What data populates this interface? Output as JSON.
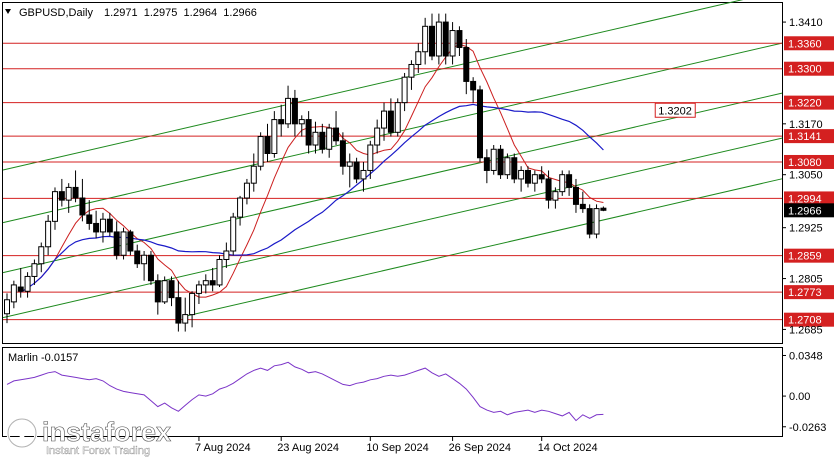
{
  "header": {
    "symbol_tf": "GBPUSD,Daily",
    "ohlc": "1.2971  1.2975  1.2964  1.2966"
  },
  "chart_data": {
    "type": "candlestick",
    "symbol": "GBPUSD",
    "timeframe": "Daily",
    "ylim": [
      1.2653,
      1.3455
    ],
    "y_ticks": [
      "1.3410",
      "1.3170",
      "1.3050",
      "1.2925",
      "1.2805",
      "1.2685"
    ],
    "x_labels": [
      "7 Aug 2024",
      "23 Aug 2024",
      "10 Sep 2024",
      "26 Sep 2024",
      "14 Oct 2024"
    ],
    "x_label_days": [
      28,
      40,
      53,
      65,
      78
    ],
    "level_lines": [
      {
        "label": "1.3360",
        "value": 1.336
      },
      {
        "label": "1.3300",
        "value": 1.33
      },
      {
        "label": "1.3220",
        "value": 1.322
      },
      {
        "label": "1.3141",
        "value": 1.3141
      },
      {
        "label": "1.3080",
        "value": 1.308
      },
      {
        "label": "1.2994",
        "value": 1.2994
      },
      {
        "label": "1.2859",
        "value": 1.2859
      },
      {
        "label": "1.2773",
        "value": 1.2773
      },
      {
        "label": "1.2708",
        "value": 1.2708
      }
    ],
    "current_price": {
      "label": "1.2966",
      "value": 1.2966
    },
    "callout": {
      "label": "1.3202",
      "value": 1.3202,
      "day": 88
    },
    "candles_ohlc": [
      [
        1.2722,
        1.277,
        1.27,
        1.2755
      ],
      [
        1.275,
        1.28,
        1.2735,
        1.279
      ],
      [
        1.2785,
        1.283,
        1.276,
        1.2775
      ],
      [
        1.2775,
        1.282,
        1.276,
        1.281
      ],
      [
        1.281,
        1.285,
        1.279,
        1.284
      ],
      [
        1.284,
        1.289,
        1.282,
        1.288
      ],
      [
        1.288,
        1.2955,
        1.286,
        1.294
      ],
      [
        1.294,
        1.302,
        1.292,
        1.301
      ],
      [
        1.301,
        1.304,
        1.2975,
        1.299
      ],
      [
        1.299,
        1.303,
        1.296,
        1.302
      ],
      [
        1.302,
        1.306,
        1.2985,
        1.2995
      ],
      [
        1.2995,
        1.304,
        1.294,
        1.2955
      ],
      [
        1.2955,
        1.299,
        1.292,
        1.2935
      ],
      [
        1.2935,
        1.2965,
        1.29,
        1.2915
      ],
      [
        1.2915,
        1.296,
        1.289,
        1.2945
      ],
      [
        1.2945,
        1.296,
        1.2905,
        1.2915
      ],
      [
        1.2915,
        1.294,
        1.285,
        1.286
      ],
      [
        1.286,
        1.2925,
        1.285,
        1.2915
      ],
      [
        1.2915,
        1.292,
        1.286,
        1.287
      ],
      [
        1.287,
        1.2885,
        1.283,
        1.284
      ],
      [
        1.284,
        1.287,
        1.28,
        1.286
      ],
      [
        1.286,
        1.287,
        1.279,
        1.28
      ],
      [
        1.28,
        1.2815,
        1.272,
        1.275
      ],
      [
        1.275,
        1.281,
        1.2745,
        1.28
      ],
      [
        1.28,
        1.281,
        1.274,
        1.276
      ],
      [
        1.276,
        1.28,
        1.268,
        1.27
      ],
      [
        1.27,
        1.276,
        1.268,
        1.272
      ],
      [
        1.272,
        1.2775,
        1.269,
        1.277
      ],
      [
        1.277,
        1.28,
        1.2745,
        1.279
      ],
      [
        1.279,
        1.2815,
        1.277,
        1.28
      ],
      [
        1.28,
        1.283,
        1.2775,
        1.279
      ],
      [
        1.279,
        1.286,
        1.2785,
        1.285
      ],
      [
        1.285,
        1.289,
        1.283,
        1.287
      ],
      [
        1.287,
        1.296,
        1.286,
        1.295
      ],
      [
        1.295,
        1.3,
        1.293,
        1.2995
      ],
      [
        1.2995,
        1.304,
        1.298,
        1.303
      ],
      [
        1.303,
        1.31,
        1.301,
        1.307
      ],
      [
        1.307,
        1.315,
        1.306,
        1.314
      ],
      [
        1.314,
        1.317,
        1.308,
        1.31
      ],
      [
        1.31,
        1.32,
        1.309,
        1.318
      ],
      [
        1.318,
        1.3215,
        1.314,
        1.317
      ],
      [
        1.317,
        1.326,
        1.316,
        1.323
      ],
      [
        1.323,
        1.325,
        1.314,
        1.317
      ],
      [
        1.317,
        1.319,
        1.314,
        1.318
      ],
      [
        1.318,
        1.32,
        1.31,
        1.312
      ],
      [
        1.312,
        1.3175,
        1.31,
        1.315
      ],
      [
        1.315,
        1.317,
        1.31,
        1.311
      ],
      [
        1.311,
        1.317,
        1.309,
        1.316
      ],
      [
        1.316,
        1.32,
        1.312,
        1.313
      ],
      [
        1.313,
        1.315,
        1.305,
        1.307
      ],
      [
        1.307,
        1.31,
        1.302,
        1.308
      ],
      [
        1.308,
        1.309,
        1.303,
        1.304
      ],
      [
        1.304,
        1.308,
        1.301,
        1.306
      ],
      [
        1.306,
        1.313,
        1.304,
        1.312
      ],
      [
        1.312,
        1.318,
        1.31,
        1.316
      ],
      [
        1.316,
        1.322,
        1.313,
        1.32
      ],
      [
        1.32,
        1.323,
        1.314,
        1.315
      ],
      [
        1.315,
        1.323,
        1.314,
        1.322
      ],
      [
        1.322,
        1.329,
        1.32,
        1.328
      ],
      [
        1.328,
        1.332,
        1.325,
        1.331
      ],
      [
        1.331,
        1.336,
        1.329,
        1.334
      ],
      [
        1.334,
        1.342,
        1.331,
        1.34
      ],
      [
        1.34,
        1.343,
        1.332,
        1.333
      ],
      [
        1.333,
        1.343,
        1.331,
        1.341
      ],
      [
        1.341,
        1.343,
        1.331,
        1.333
      ],
      [
        1.333,
        1.341,
        1.331,
        1.339
      ],
      [
        1.339,
        1.34,
        1.333,
        1.335
      ],
      [
        1.335,
        1.337,
        1.324,
        1.327
      ],
      [
        1.327,
        1.328,
        1.322,
        1.325
      ],
      [
        1.325,
        1.326,
        1.308,
        1.309
      ],
      [
        1.309,
        1.311,
        1.303,
        1.306
      ],
      [
        1.306,
        1.312,
        1.305,
        1.311
      ],
      [
        1.311,
        1.312,
        1.304,
        1.305
      ],
      [
        1.305,
        1.31,
        1.304,
        1.309
      ],
      [
        1.309,
        1.31,
        1.303,
        1.304
      ],
      [
        1.304,
        1.307,
        1.301,
        1.306
      ],
      [
        1.306,
        1.307,
        1.302,
        1.303
      ],
      [
        1.303,
        1.306,
        1.301,
        1.305
      ],
      [
        1.305,
        1.307,
        1.303,
        1.304
      ],
      [
        1.304,
        1.306,
        1.297,
        1.299
      ],
      [
        1.299,
        1.302,
        1.297,
        1.301
      ],
      [
        1.301,
        1.306,
        1.3,
        1.305
      ],
      [
        1.305,
        1.306,
        1.3,
        1.302
      ],
      [
        1.302,
        1.304,
        1.296,
        1.298
      ],
      [
        1.298,
        1.301,
        1.296,
        1.297
      ],
      [
        1.297,
        1.298,
        1.29,
        1.291
      ],
      [
        1.291,
        1.298,
        1.29,
        1.297
      ],
      [
        1.2971,
        1.2975,
        1.2964,
        1.2966
      ]
    ],
    "oscillator": {
      "label": "Marlin -0.0157",
      "ylim": [
        -0.0325,
        0.0395
      ],
      "y_ticks": [
        "0.0348",
        "0.00",
        "-0.0263"
      ],
      "values": [
        0.01,
        0.013,
        0.014,
        0.015,
        0.016,
        0.018,
        0.02,
        0.021,
        0.018,
        0.017,
        0.016,
        0.015,
        0.014,
        0.015,
        0.013,
        0.009,
        0.006,
        0.004,
        0.003,
        0.002,
        0.001,
        -0.004,
        -0.009,
        -0.006,
        -0.01,
        -0.013,
        -0.008,
        -0.003,
        0.001,
        0.0,
        0.002,
        0.006,
        0.008,
        0.011,
        0.015,
        0.019,
        0.022,
        0.024,
        0.022,
        0.026,
        0.027,
        0.029,
        0.025,
        0.023,
        0.02,
        0.021,
        0.019,
        0.016,
        0.013,
        0.01,
        0.009,
        0.011,
        0.012,
        0.014,
        0.015,
        0.017,
        0.018,
        0.017,
        0.018,
        0.02,
        0.022,
        0.024,
        0.02,
        0.017,
        0.019,
        0.015,
        0.011,
        0.006,
        -0.001,
        -0.009,
        -0.012,
        -0.014,
        -0.013,
        -0.016,
        -0.014,
        -0.013,
        -0.012,
        -0.014,
        -0.012,
        -0.013,
        -0.015,
        -0.017,
        -0.014,
        -0.021,
        -0.016,
        -0.019,
        -0.016,
        -0.0157
      ]
    },
    "lines": {
      "ma_fast_color": "#cc1f1f",
      "ma_slow_color": "#1a1ac8",
      "channel_color": "#1e8a1e",
      "level_color": "#d42020",
      "osc_color": "#7b34c8"
    }
  },
  "watermark": {
    "brand": "instaforex",
    "tagline": "Instant Forex Trading"
  }
}
